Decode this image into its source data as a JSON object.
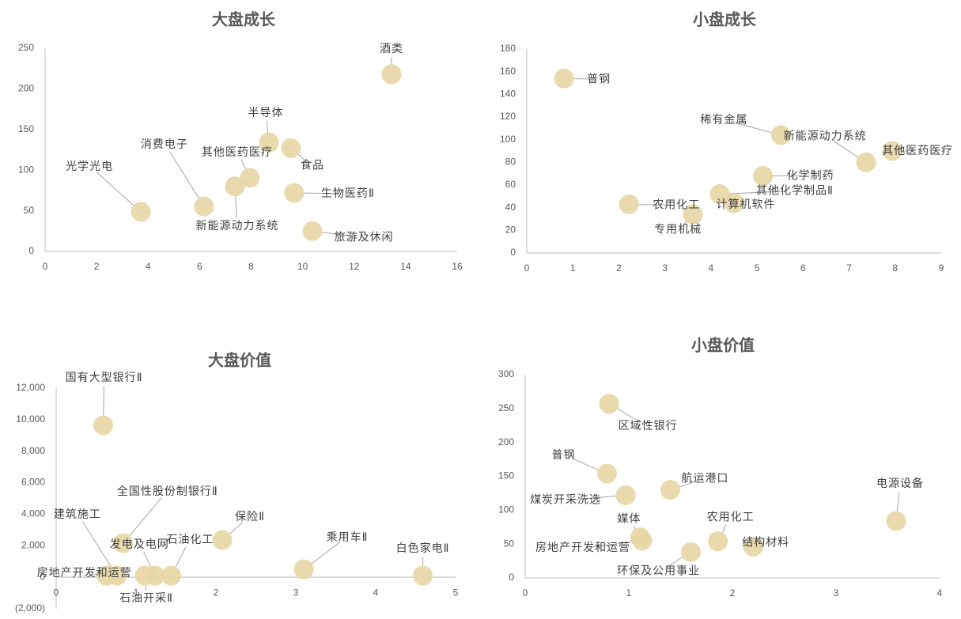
{
  "chart_data": [
    {
      "type": "scatter",
      "title": "大盘成长",
      "color": "#e6d6a4",
      "x": [
        13.45,
        3.72,
        6.17,
        8.69,
        7.95,
        7.37,
        9.55,
        9.67,
        10.38
      ],
      "values": [
        218,
        48.6,
        55.4,
        134,
        90.5,
        80,
        127,
        72,
        25
      ],
      "labels": [
        "酒类",
        "光学光电",
        "消费电子",
        "半导体",
        "其他医药医疗",
        "新能源动力系统",
        "食品",
        "生物医药Ⅱ",
        "旅游及休闲"
      ],
      "xlim": [
        0,
        16
      ],
      "xticks": [
        0,
        2,
        4,
        6,
        8,
        10,
        12,
        14,
        16
      ],
      "ylim": [
        0,
        250
      ],
      "yticks": [
        0,
        50,
        100,
        150,
        200,
        250
      ]
    },
    {
      "type": "scatter",
      "title": "小盘成长",
      "color": "#e6d6a4",
      "x": [
        0.81,
        5.52,
        7.37,
        7.94,
        5.13,
        4.19,
        4.5,
        2.22,
        3.61
      ],
      "values": [
        154,
        104,
        80,
        90,
        68,
        52,
        44,
        43,
        34
      ],
      "labels": [
        "普钢",
        "稀有金属",
        "新能源动力系统",
        "其他医药医疗",
        "化学制药",
        "其他化学制品Ⅱ",
        "计算机软件",
        "农用化工",
        "专用机械"
      ],
      "xlim": [
        0,
        9
      ],
      "xticks": [
        0,
        1,
        2,
        3,
        4,
        5,
        6,
        7,
        8,
        9
      ],
      "ylim": [
        0,
        180
      ],
      "yticks": [
        0,
        20,
        40,
        60,
        80,
        100,
        120,
        140,
        160,
        180
      ]
    },
    {
      "type": "scatter",
      "title": "大盘价值",
      "color": "#e6d6a4",
      "negative_tick_color": "#c00000",
      "x": [
        0.59,
        0.84,
        0.76,
        0.63,
        1.11,
        1.24,
        1.44,
        2.08,
        3.1,
        4.59
      ],
      "values": [
        9640,
        2160,
        100,
        100,
        100,
        100,
        100,
        2360,
        500,
        100
      ],
      "labels": [
        "国有大型银行Ⅱ",
        "全国性股份制银行Ⅱ",
        "建筑施工",
        "房地产开发和运营",
        "石油开采Ⅱ",
        "发电及电网",
        "石油化工",
        "保险Ⅱ",
        "乘用车Ⅱ",
        "白色家电Ⅱ"
      ],
      "xlim": [
        0,
        5
      ],
      "xticks": [
        0,
        1,
        2,
        3,
        4,
        5
      ],
      "ylim": [
        -2000,
        12000
      ],
      "yticks": [
        {
          "value": -2000,
          "label": "(2,000)"
        },
        0,
        {
          "value": 2000,
          "label": "2,000"
        },
        {
          "value": 4000,
          "label": "4,000"
        },
        {
          "value": 6000,
          "label": "6,000"
        },
        {
          "value": 8000,
          "label": "8,000"
        },
        {
          "value": 10000,
          "label": "10,000"
        },
        {
          "value": 12000,
          "label": "12,000"
        }
      ]
    },
    {
      "type": "scatter",
      "title": "小盘价值",
      "color": "#e6d6a4",
      "x": [
        0.81,
        0.79,
        0.97,
        1.4,
        1.11,
        1.13,
        1.6,
        1.86,
        2.2,
        3.58
      ],
      "values": [
        257,
        154,
        122,
        130,
        60,
        55,
        38,
        54,
        46,
        84
      ],
      "labels": [
        "区域性银行",
        "普钢",
        "煤炭开采洗选",
        "航运港口",
        "媒体",
        "房地产开发和运营",
        "环保及公用事业",
        "农用化工",
        "结构材料",
        "电源设备"
      ],
      "xlim": [
        0,
        4
      ],
      "xticks": [
        0,
        1,
        2,
        3,
        4
      ],
      "ylim": [
        0,
        300
      ],
      "yticks": [
        0,
        50,
        100,
        150,
        200,
        250,
        300
      ]
    }
  ]
}
